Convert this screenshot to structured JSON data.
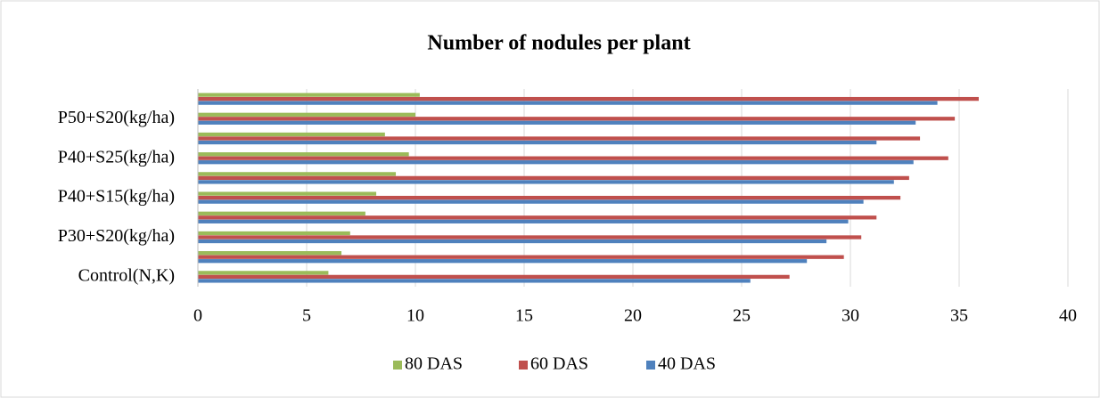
{
  "chart_data": {
    "type": "bar",
    "orientation": "horizontal",
    "title": "Number of nodules per plant",
    "categories": [
      "Control(N,K)",
      null,
      "P30+S20(kg/ha)",
      null,
      "P40+S15(kg/ha)",
      null,
      "P40+S25(kg/ha)",
      null,
      "P50+S20(kg/ha)",
      null
    ],
    "series": [
      {
        "name": "80 DAS",
        "color": "#9bbb59",
        "values": [
          6.0,
          6.6,
          7.0,
          7.7,
          8.2,
          9.1,
          9.7,
          8.6,
          10.0,
          10.2
        ]
      },
      {
        "name": "60 DAS",
        "color": "#c0504d",
        "values": [
          27.2,
          29.7,
          30.5,
          31.2,
          32.3,
          32.7,
          34.5,
          33.2,
          34.8,
          35.9
        ]
      },
      {
        "name": "40 DAS",
        "color": "#4f81bd",
        "values": [
          25.4,
          28.0,
          28.9,
          29.9,
          30.6,
          32.0,
          32.9,
          31.2,
          33.0,
          34.0
        ]
      }
    ],
    "xlim": [
      0,
      40
    ],
    "xticks": [
      0,
      5,
      10,
      15,
      20,
      25,
      30,
      35,
      40
    ],
    "grid": true,
    "legend": "bottom"
  }
}
